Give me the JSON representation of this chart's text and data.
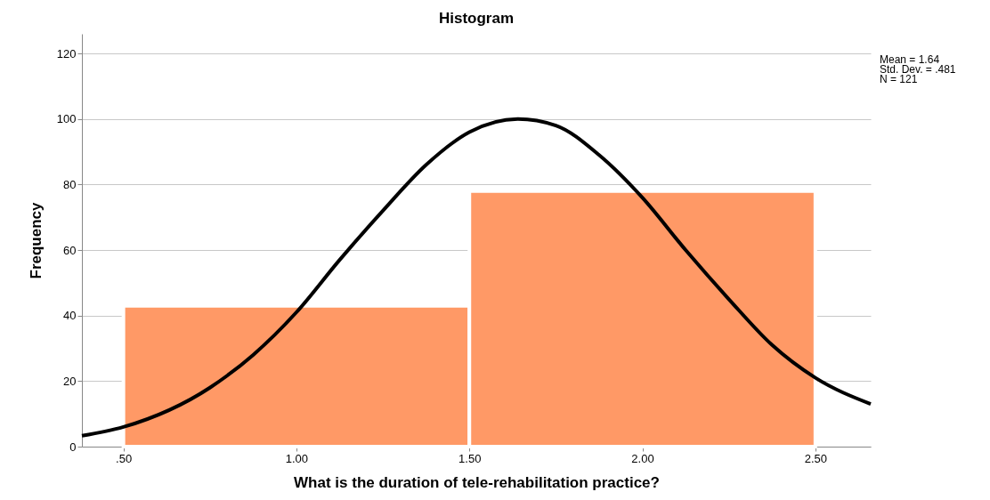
{
  "chart_data": {
    "type": "histogram",
    "title": "Histogram",
    "xlabel": "What is the duration of  tele-rehabilitation practice?",
    "ylabel": "Frequency",
    "bins": [
      0.5,
      1.5,
      2.5
    ],
    "values": [
      43,
      78
    ],
    "color": "#ff9966",
    "series": [
      {
        "type": "line",
        "color": "#000000",
        "x": [
          0.38,
          0.5,
          0.75,
          0.875,
          1.0,
          1.125,
          1.25,
          1.375,
          1.5,
          1.64,
          1.75,
          1.875,
          2.0,
          2.125,
          2.25,
          2.375,
          2.5,
          2.66
        ],
        "values": [
          3.3,
          6,
          18,
          28,
          41,
          57,
          72,
          86,
          96,
          100,
          98,
          89,
          76,
          60,
          45,
          31,
          21,
          13
        ]
      }
    ],
    "xlim": [
      0.38,
      2.66
    ],
    "xticks": [
      {
        "value": 0.5,
        "label": ".50"
      },
      {
        "value": 1.0,
        "label": "1.00"
      },
      {
        "value": 1.5,
        "label": "1.50"
      },
      {
        "value": 2.0,
        "label": "2.00"
      },
      {
        "value": 2.5,
        "label": "2.50"
      }
    ],
    "ylim": [
      0,
      126
    ],
    "yticks": [
      0,
      20,
      40,
      60,
      80,
      100,
      120
    ],
    "grid": "y",
    "annotations": [
      "Mean = 1.64",
      "Std. Dev. = .481",
      "N = 121"
    ]
  }
}
